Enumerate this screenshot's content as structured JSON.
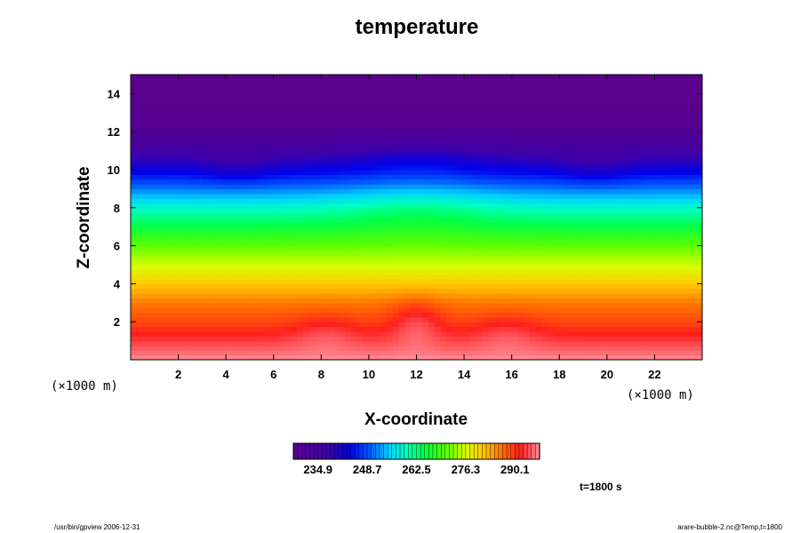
{
  "chart_data": {
    "type": "heatmap",
    "title": "temperature",
    "xlabel": "X-coordinate",
    "ylabel": "Z-coordinate",
    "x_unit": "(×1000 m)",
    "z_unit": "(×1000 m)",
    "xlim": [
      0,
      24
    ],
    "ylim": [
      0,
      15
    ],
    "x_ticks": [
      2,
      4,
      6,
      8,
      10,
      12,
      14,
      16,
      18,
      20,
      22
    ],
    "y_ticks": [
      2,
      4,
      6,
      8,
      10,
      12,
      14
    ],
    "colorbar": {
      "min": 228,
      "max": 297,
      "tick_values": [
        234.9,
        248.7,
        262.5,
        276.3,
        290.1
      ],
      "tick_labels": [
        "234.9",
        "248.7",
        "262.5",
        "276.3",
        "290.1"
      ]
    },
    "approx_vertical_profile": {
      "z": [
        0,
        1,
        2,
        3,
        4,
        5,
        6,
        7,
        8,
        9,
        10,
        11,
        12,
        13,
        14,
        15
      ],
      "temperature": [
        297,
        293,
        289,
        286,
        281,
        276,
        271,
        265,
        259,
        251,
        243,
        236,
        231,
        229,
        228,
        228
      ]
    },
    "time_label": "t=1800 s"
  },
  "footer": {
    "left": "/usr/bin/gpview 2006-12-31",
    "right": "arare-bubble-2.nc@Temp,t=1800"
  },
  "colors": {
    "low": "#6a00a8",
    "mid": "#00ff40",
    "high": "#ff3020"
  }
}
